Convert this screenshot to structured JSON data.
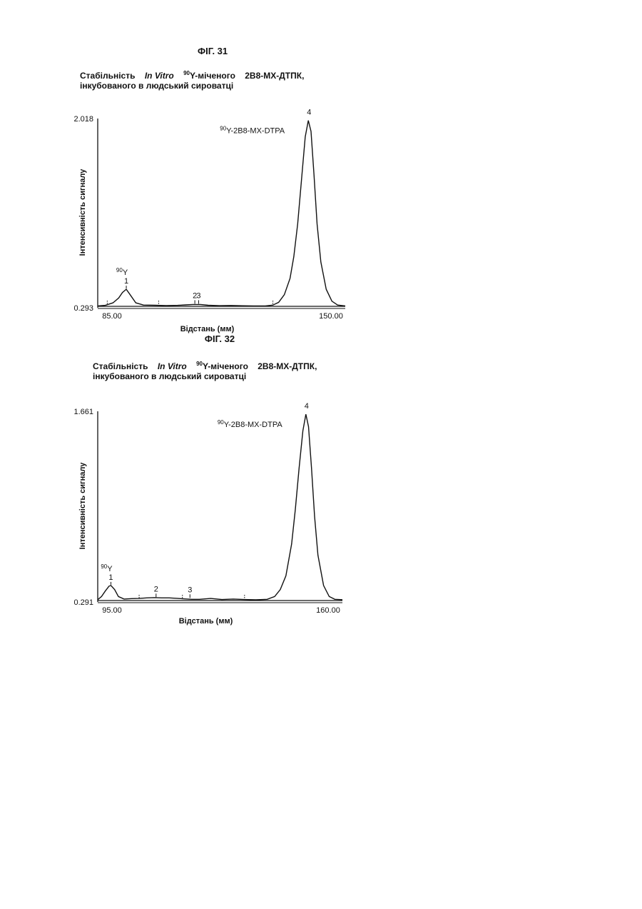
{
  "figures": [
    {
      "fig_label": "ФІГ. 31",
      "title_parts": {
        "p1": "Стабільність ",
        "p2": "In Vitro",
        "p3_sup": "90",
        "p4": "Y-міченого    2В8-МХ-ДТПК,",
        "line2": "інкубованого в людський сироватці"
      }
    },
    {
      "fig_label": "ФІГ. 32",
      "title_parts": {
        "p1": "Стабільність ",
        "p2": "In Vitro",
        "p3_sup": "90",
        "p4": "Y-міченого    2В8-МХ-ДТПК,",
        "line2": "інкубованого в людський сироватці"
      }
    }
  ],
  "chart_data": [
    {
      "type": "line",
      "xlabel": "Відстань (мм)",
      "ylabel": "Інтенсивність сигналу",
      "x_tick_labels": [
        "85.00",
        "150.00"
      ],
      "y_tick_labels": [
        "2.018",
        "0.293"
      ],
      "xlim": [
        85.0,
        150.0
      ],
      "ylim": [
        0.293,
        2.018
      ],
      "grid": false,
      "peaks": [
        {
          "x": 92.5,
          "y": 0.45,
          "label": "1",
          "species_sup": "90",
          "species": "Y"
        },
        {
          "x": 110.5,
          "y": 0.31,
          "label": "2"
        },
        {
          "x": 111.5,
          "y": 0.31,
          "label": "3"
        },
        {
          "x": 140.5,
          "y": 2.0,
          "label": "4",
          "species_sup": "90",
          "species": "Y-2B8-MX-DTPA"
        }
      ],
      "series": [
        {
          "x": [
            85,
            87,
            89,
            90.5,
            91.5,
            92.5,
            93.5,
            95,
            97,
            100,
            103,
            106,
            108,
            110,
            112,
            114,
            117,
            120,
            123,
            126,
            129,
            131,
            132.5,
            134,
            135.5,
            136.5,
            137.5,
            138.5,
            139.5,
            140.3,
            141,
            141.8,
            142.6,
            143.6,
            145,
            146.5,
            148,
            150
          ],
          "y": [
            0.296,
            0.302,
            0.325,
            0.37,
            0.42,
            0.45,
            0.4,
            0.325,
            0.305,
            0.303,
            0.3,
            0.302,
            0.306,
            0.31,
            0.31,
            0.303,
            0.299,
            0.301,
            0.298,
            0.297,
            0.297,
            0.305,
            0.33,
            0.4,
            0.55,
            0.75,
            1.05,
            1.45,
            1.85,
            2.0,
            1.9,
            1.5,
            1.05,
            0.7,
            0.45,
            0.34,
            0.305,
            0.296
          ]
        }
      ]
    },
    {
      "type": "line",
      "xlabel": "Відстань (мм)",
      "ylabel": "Інтенсивність сигналу",
      "x_tick_labels": [
        "95.00",
        "160.00"
      ],
      "y_tick_labels": [
        "1.661",
        "0.291"
      ],
      "xlim": [
        95.0,
        160.0
      ],
      "ylim": [
        0.291,
        1.661
      ],
      "grid": false,
      "peaks": [
        {
          "x": 98.5,
          "y": 0.4,
          "label": "1",
          "species_sup": "90",
          "species": "Y"
        },
        {
          "x": 110.5,
          "y": 0.31,
          "label": "2"
        },
        {
          "x": 119.5,
          "y": 0.305,
          "label": "3"
        },
        {
          "x": 150.5,
          "y": 1.64,
          "label": "4",
          "species_sup": "90",
          "species": "Y-2B8-MX-DTPA"
        }
      ],
      "series": [
        {
          "x": [
            95,
            96,
            97,
            98,
            98.5,
            99.5,
            100.5,
            102,
            104,
            106,
            108,
            110,
            112,
            114,
            116,
            118,
            120,
            122,
            125,
            128,
            131,
            134,
            137,
            140,
            142,
            143.5,
            145,
            146.5,
            147.5,
            148.5,
            149.5,
            150.3,
            151,
            151.8,
            152.6,
            153.5,
            155,
            156.5,
            158,
            160
          ],
          "y": [
            0.297,
            0.32,
            0.36,
            0.395,
            0.4,
            0.37,
            0.32,
            0.302,
            0.305,
            0.306,
            0.31,
            0.312,
            0.31,
            0.31,
            0.307,
            0.303,
            0.3,
            0.3,
            0.306,
            0.298,
            0.302,
            0.298,
            0.296,
            0.3,
            0.32,
            0.37,
            0.47,
            0.7,
            0.95,
            1.25,
            1.52,
            1.64,
            1.55,
            1.25,
            0.9,
            0.62,
            0.4,
            0.32,
            0.3,
            0.297
          ]
        }
      ]
    }
  ]
}
